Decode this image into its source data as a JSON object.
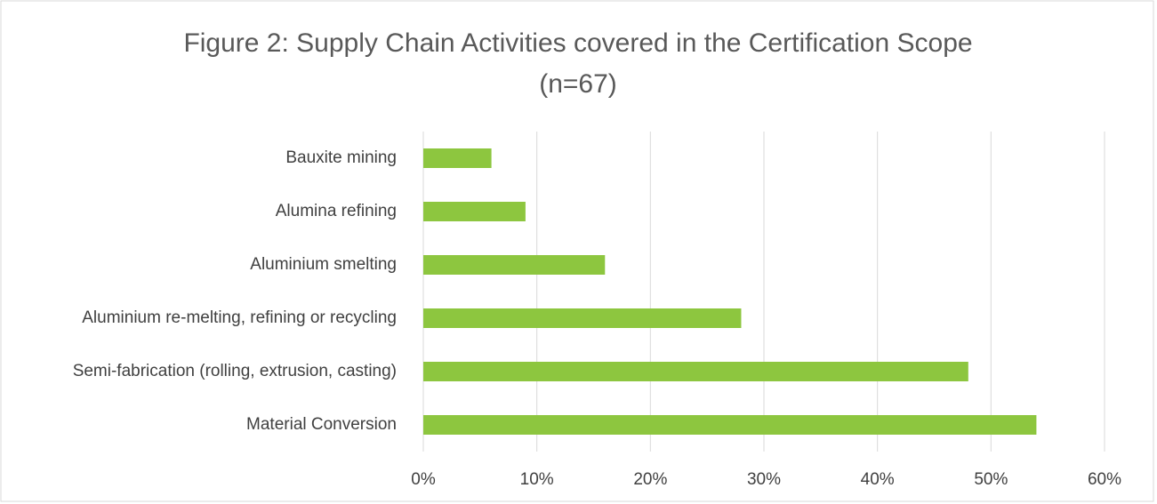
{
  "chart_data": {
    "type": "bar",
    "orientation": "horizontal",
    "title": [
      "Figure 2: Supply Chain Activities covered in the Certification Scope",
      "(n=67)"
    ],
    "categories": [
      "Bauxite mining",
      "Alumina refining",
      "Aluminium smelting",
      "Aluminium re-melting, refining or recycling",
      "Semi-fabrication (rolling, extrusion, casting)",
      "Material Conversion"
    ],
    "values": [
      6,
      9,
      16,
      28,
      48,
      54
    ],
    "color": "#8dc63f",
    "xlim": [
      0,
      60
    ],
    "xticks": [
      {
        "value": 0,
        "label": "0%"
      },
      {
        "value": 10,
        "label": "10%"
      },
      {
        "value": 20,
        "label": "20%"
      },
      {
        "value": 30,
        "label": "30%"
      },
      {
        "value": 40,
        "label": "40%"
      },
      {
        "value": 50,
        "label": "50%"
      },
      {
        "value": 60,
        "label": "60%"
      }
    ],
    "grid": true
  }
}
